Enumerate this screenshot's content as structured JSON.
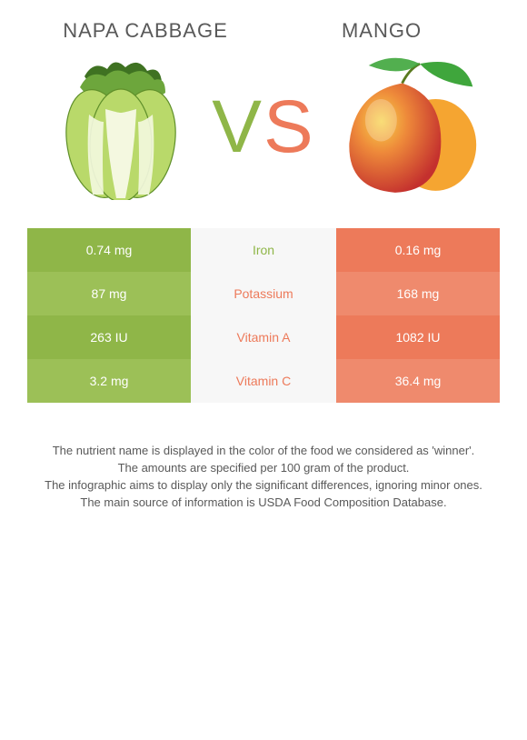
{
  "left": {
    "title": "Napa cabbage",
    "color": "#8fb648",
    "alt_color": "#9cc057"
  },
  "right": {
    "title": "Mango",
    "color": "#ed7a5a",
    "alt_color": "#ef8a6d"
  },
  "vs_text": {
    "v": "V",
    "s": "S"
  },
  "mid_bg": "#f7f7f7",
  "rows": [
    {
      "nutrient": "Iron",
      "left": "0.74 mg",
      "right": "0.16 mg",
      "winner": "left"
    },
    {
      "nutrient": "Potassium",
      "left": "87 mg",
      "right": "168 mg",
      "winner": "right"
    },
    {
      "nutrient": "Vitamin A",
      "left": "263 IU",
      "right": "1082 IU",
      "winner": "right"
    },
    {
      "nutrient": "Vitamin C",
      "left": "3.2 mg",
      "right": "36.4 mg",
      "winner": "right"
    }
  ],
  "footnotes": [
    "The nutrient name is displayed in the color of the food we considered as 'winner'.",
    "The amounts are specified per 100 gram of the product.",
    "The infographic aims to display only the significant differences, ignoring minor ones.",
    "The main source of information is USDA Food Composition Database."
  ]
}
